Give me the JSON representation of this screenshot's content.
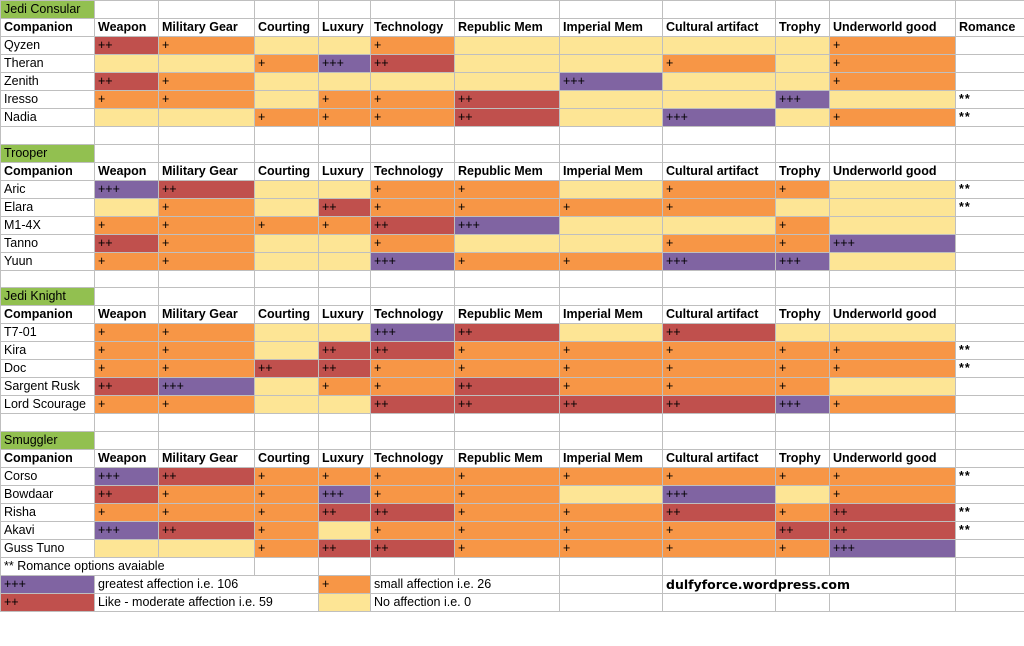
{
  "columns": [
    "Companion",
    "Weapon",
    "Military Gear",
    "Courting",
    "Luxury",
    "Technology",
    "Republic Mem",
    "Imperial Mem",
    "Cultural artifact",
    "Trophy",
    "Underworld good",
    "Romance"
  ],
  "colors": {
    "great": "#8064a2",
    "like": "#c0504d",
    "small": "#f79646",
    "none": "#fde595",
    "section": "#92c050"
  },
  "sections": [
    {
      "title": "Jedi Consular",
      "show_romance_header": true,
      "rows": [
        {
          "name": "Qyzen",
          "values": [
            2,
            1,
            0,
            0,
            1,
            0,
            0,
            0,
            0,
            1
          ],
          "romance": ""
        },
        {
          "name": "Theran",
          "values": [
            0,
            0,
            1,
            3,
            2,
            0,
            0,
            1,
            0,
            1
          ],
          "romance": ""
        },
        {
          "name": "Zenith",
          "values": [
            2,
            1,
            0,
            0,
            0,
            0,
            3,
            0,
            0,
            1
          ],
          "romance": ""
        },
        {
          "name": "Iresso",
          "values": [
            1,
            1,
            0,
            1,
            1,
            2,
            0,
            0,
            3,
            0
          ],
          "romance": "**"
        },
        {
          "name": "Nadia",
          "values": [
            0,
            0,
            1,
            1,
            1,
            2,
            0,
            3,
            0,
            1
          ],
          "romance": "**"
        }
      ]
    },
    {
      "title": "Trooper",
      "show_romance_header": false,
      "rows": [
        {
          "name": "Aric",
          "values": [
            3,
            2,
            0,
            0,
            1,
            1,
            0,
            1,
            1,
            0
          ],
          "romance": "**"
        },
        {
          "name": "Elara",
          "values": [
            0,
            1,
            0,
            2,
            1,
            1,
            1,
            1,
            0,
            0
          ],
          "romance": "**"
        },
        {
          "name": "M1-4X",
          "values": [
            1,
            1,
            1,
            1,
            2,
            3,
            0,
            0,
            1,
            0
          ],
          "romance": ""
        },
        {
          "name": "Tanno",
          "values": [
            2,
            1,
            0,
            0,
            1,
            0,
            0,
            1,
            1,
            3
          ],
          "romance": ""
        },
        {
          "name": "Yuun",
          "values": [
            1,
            1,
            0,
            0,
            3,
            1,
            1,
            3,
            3,
            0
          ],
          "romance": ""
        }
      ]
    },
    {
      "title": "Jedi Knight",
      "show_romance_header": false,
      "rows": [
        {
          "name": "T7-01",
          "values": [
            1,
            1,
            0,
            0,
            3,
            2,
            0,
            2,
            0,
            0
          ],
          "romance": ""
        },
        {
          "name": "Kira",
          "values": [
            1,
            1,
            0,
            2,
            2,
            1,
            1,
            1,
            1,
            1
          ],
          "romance": "**"
        },
        {
          "name": "Doc",
          "values": [
            1,
            1,
            2,
            2,
            1,
            1,
            1,
            1,
            1,
            1
          ],
          "romance": "**"
        },
        {
          "name": "Sargent Rusk",
          "values": [
            2,
            3,
            0,
            1,
            1,
            2,
            1,
            1,
            1,
            0
          ],
          "romance": ""
        },
        {
          "name": "Lord Scourage",
          "values": [
            1,
            1,
            0,
            0,
            2,
            2,
            2,
            2,
            3,
            1
          ],
          "romance": ""
        }
      ]
    },
    {
      "title": "Smuggler",
      "show_romance_header": false,
      "rows": [
        {
          "name": "Corso",
          "values": [
            3,
            2,
            1,
            1,
            1,
            1,
            1,
            1,
            1,
            1
          ],
          "romance": "**"
        },
        {
          "name": "Bowdaar",
          "values": [
            2,
            1,
            1,
            3,
            1,
            1,
            0,
            3,
            0,
            1
          ],
          "romance": ""
        },
        {
          "name": "Risha",
          "values": [
            1,
            1,
            1,
            2,
            2,
            1,
            1,
            2,
            1,
            2
          ],
          "romance": "**"
        },
        {
          "name": "Akavi",
          "values": [
            3,
            2,
            1,
            0,
            1,
            1,
            1,
            1,
            2,
            2
          ],
          "romance": "**"
        },
        {
          "name": "Guss Tuno",
          "values": [
            0,
            0,
            1,
            2,
            2,
            1,
            1,
            1,
            1,
            3
          ],
          "romance": ""
        }
      ]
    }
  ],
  "levels": {
    "0": "",
    "1": "+",
    "2": "++",
    "3": "+++"
  },
  "legend": {
    "note": "** Romance options avaiable",
    "great_symbol": "+++",
    "great_text": "greatest affection i.e. 106",
    "like_symbol": "++",
    "like_text": "Like - moderate affection i.e. 59",
    "small_symbol": "+",
    "small_text": "small affection i.e. 26",
    "none_text": "No affection i.e. 0",
    "credit": "dulfyforce.wordpress.com"
  }
}
